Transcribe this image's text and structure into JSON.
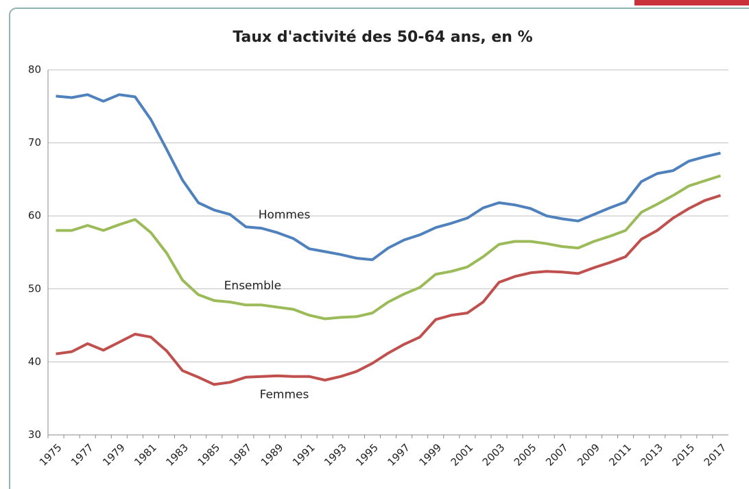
{
  "chart_data": {
    "type": "line",
    "title": "Taux d'activité des 50-64 ans, en %",
    "categories": [
      "1975",
      null,
      "1977",
      null,
      "1979",
      null,
      "1981",
      null,
      "1983",
      null,
      "1985",
      null,
      "1987",
      null,
      "1989",
      null,
      "1991",
      null,
      "1993",
      null,
      "1995",
      null,
      "1997",
      null,
      "1999",
      null,
      "2001",
      null,
      "2003",
      null,
      "2005",
      null,
      "2007",
      null,
      "2009",
      null,
      "2011",
      null,
      "2013",
      null,
      "2015",
      null,
      "2017"
    ],
    "series": [
      {
        "name": "Hommes",
        "color": "#4f81bd",
        "values": [
          76.4,
          76.2,
          76.6,
          75.7,
          76.6,
          76.3,
          73.2,
          69.1,
          64.9,
          61.8,
          60.8,
          60.2,
          58.5,
          58.3,
          57.7,
          56.9,
          55.5,
          55.1,
          54.7,
          54.2,
          54.0,
          55.6,
          56.7,
          57.4,
          58.4,
          59.0,
          59.7,
          61.1,
          61.8,
          61.5,
          61.0,
          60.0,
          59.6,
          59.3,
          60.2,
          61.1,
          61.9,
          64.7,
          65.8,
          66.2,
          67.5,
          68.1,
          68.6
        ]
      },
      {
        "name": "Ensemble",
        "color": "#9bbb59",
        "values": [
          58.0,
          58.0,
          58.7,
          58.0,
          58.8,
          59.5,
          57.7,
          54.9,
          51.2,
          49.2,
          48.4,
          48.2,
          47.8,
          47.8,
          47.5,
          47.2,
          46.4,
          45.9,
          46.1,
          46.2,
          46.7,
          48.2,
          49.3,
          50.2,
          52.0,
          52.4,
          53.0,
          54.4,
          56.1,
          56.5,
          56.5,
          56.2,
          55.8,
          55.6,
          56.5,
          57.2,
          58.0,
          60.5,
          61.6,
          62.8,
          64.1,
          64.8,
          65.5
        ]
      },
      {
        "name": "Femmes",
        "color": "#c0504d",
        "values": [
          41.1,
          41.4,
          42.5,
          41.6,
          42.7,
          43.8,
          43.4,
          41.5,
          38.8,
          37.9,
          36.9,
          37.2,
          37.9,
          38.0,
          38.1,
          38.0,
          38.0,
          37.5,
          38.0,
          38.7,
          39.8,
          41.2,
          42.4,
          43.4,
          45.8,
          46.4,
          46.7,
          48.2,
          50.9,
          51.7,
          52.2,
          52.4,
          52.3,
          52.1,
          52.9,
          53.6,
          54.4,
          56.8,
          58.0,
          59.7,
          61.0,
          62.1,
          62.8
        ]
      }
    ],
    "ylim": [
      30,
      80
    ],
    "yticks": [
      30,
      40,
      50,
      60,
      70,
      80
    ],
    "grid": true
  }
}
